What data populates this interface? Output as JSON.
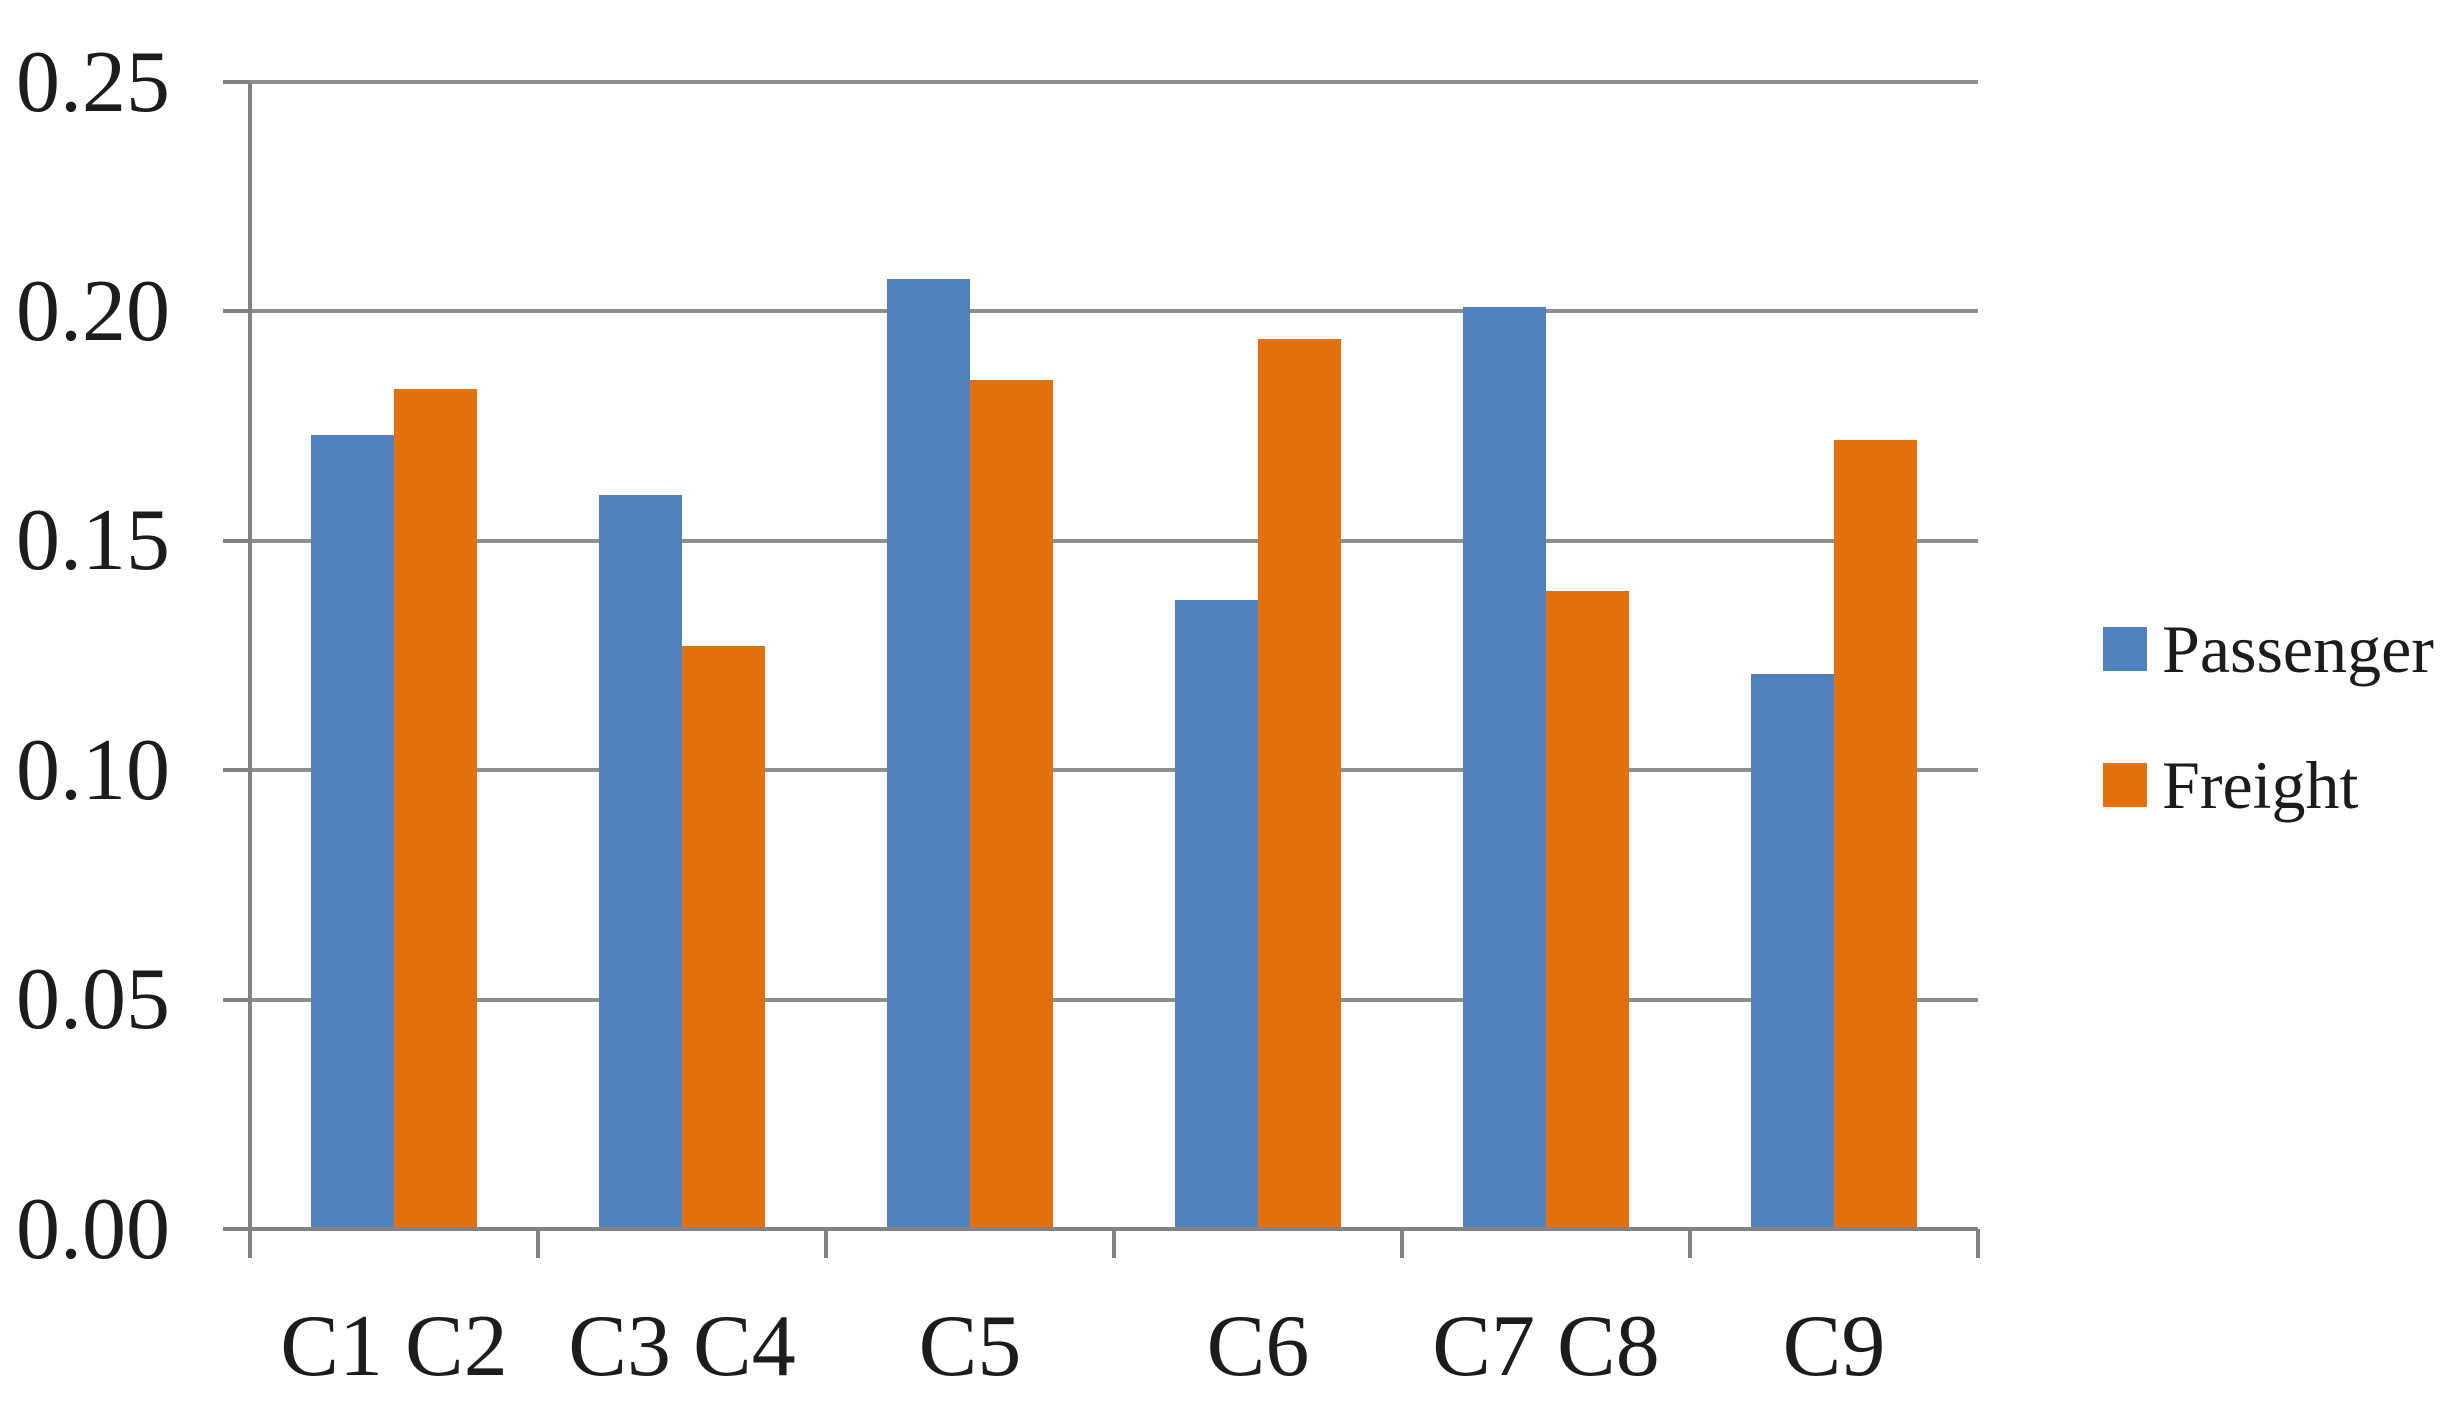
{
  "chart_data": {
    "type": "bar",
    "title": "",
    "xlabel": "",
    "ylabel": "",
    "categories": [
      "C1 C2",
      "C3 C4",
      "C5",
      "C6",
      "C7 C8",
      "C9"
    ],
    "series": [
      {
        "name": "Passenger",
        "color": "#4F81BD",
        "values": [
          0.173,
          0.16,
          0.207,
          0.137,
          0.201,
          0.121
        ]
      },
      {
        "name": "Freight",
        "color": "#E2700D",
        "values": [
          0.183,
          0.127,
          0.185,
          0.194,
          0.139,
          0.172
        ]
      }
    ],
    "ylim": [
      0,
      0.25
    ],
    "ytick_step": 0.05,
    "ytick_labels": [
      "0.00",
      "0.05",
      "0.10",
      "0.15",
      "0.20",
      "0.25"
    ],
    "grid": true,
    "legend_position": "right",
    "colors": {
      "gridline": "#8E8E8E",
      "axis": "#828282",
      "text": "#1C1C1C",
      "background": "#FFFFFF"
    }
  }
}
